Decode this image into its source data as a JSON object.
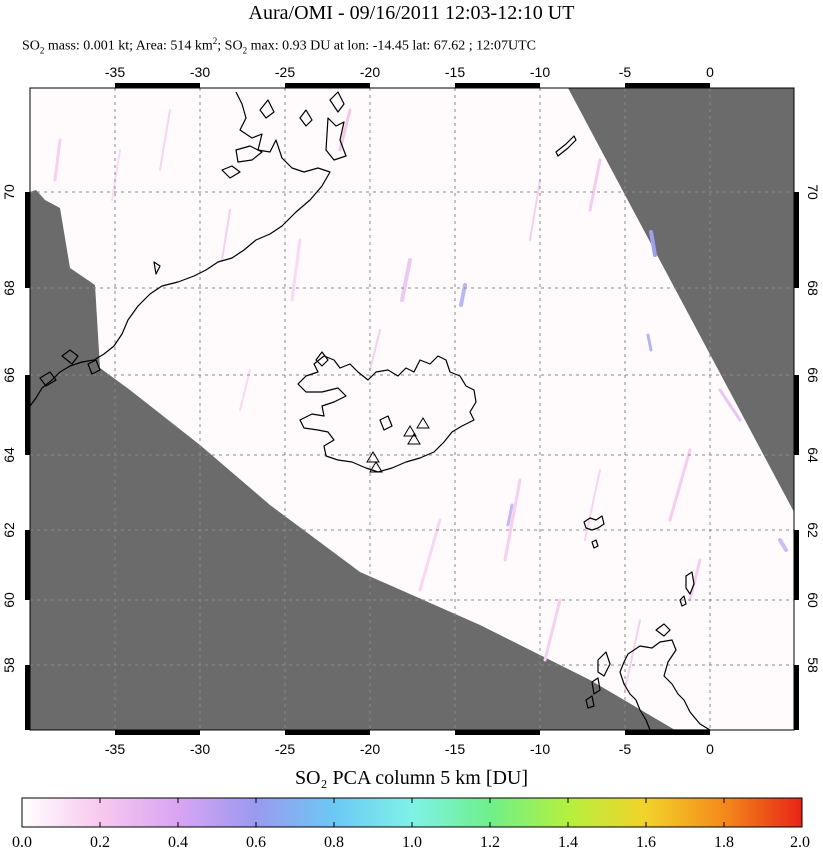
{
  "header": {
    "title": "Aura/OMI - 09/16/2011 12:03-12:10 UT",
    "subtitle": {
      "p1": "SO",
      "p1_sub": "2",
      "p2": " mass: 0.001 kt; Area: 514 km",
      "p2_sup": "2",
      "p3": "; SO",
      "p3_sub": "2",
      "p4": " max: 0.93 DU at lon: -14.45 lat: 67.62 ; 12:07UTC"
    }
  },
  "map": {
    "lon_ticks": [
      "-35",
      "-30",
      "-25",
      "-20",
      "-15",
      "-10",
      "-5",
      "0"
    ],
    "lat_ticks": [
      "70",
      "68",
      "66",
      "64",
      "62",
      "60",
      "58"
    ],
    "colors": {
      "no_data": "#6b6b6b",
      "swath": "#fffbfd",
      "coast": "#000000",
      "grid": "#888888"
    },
    "volcano_markers": 5
  },
  "colorbar": {
    "title": "SO₂ PCA column 5 km [DU]",
    "labels": [
      "0.0",
      "0.2",
      "0.4",
      "0.6",
      "0.8",
      "1.0",
      "1.2",
      "1.4",
      "1.6",
      "1.8",
      "2.0"
    ],
    "stops": [
      "#ffffff",
      "#f7c8ef",
      "#d9a4f2",
      "#9a9af0",
      "#6cc8f4",
      "#7ef2e8",
      "#6ef08a",
      "#b4f03e",
      "#f2d22a",
      "#f48a1a",
      "#e82416"
    ]
  }
}
